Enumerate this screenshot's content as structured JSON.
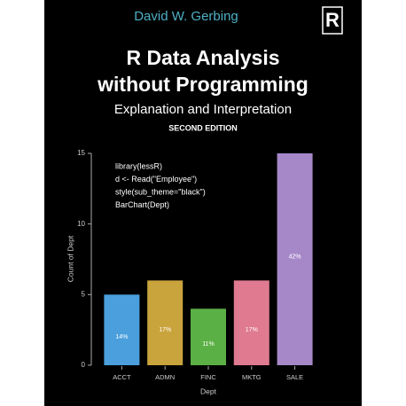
{
  "author": "David W. Gerbing",
  "publisher_logo": "R",
  "title_lines": [
    "R Data Analysis",
    "without Programming"
  ],
  "subtitle": "Explanation and Interpretation",
  "edition": "SECOND EDITION",
  "chart_data": {
    "type": "bar",
    "code_lines": [
      "library(lessR)",
      "d <- Read(\"Employee\")",
      "style(sub_theme=\"black\")",
      "BarChart(Dept)"
    ],
    "x_label": "Dept",
    "y_label": "Count of Dept",
    "categories": [
      "ACCT",
      "ADMN",
      "FINC",
      "MKTG",
      "SALE"
    ],
    "values": [
      5,
      6,
      4,
      6,
      15
    ],
    "percent_labels": [
      "14%",
      "17%",
      "11%",
      "17%",
      "42%"
    ],
    "colors": [
      "#4a9fdc",
      "#c9a33c",
      "#5bb045",
      "#df7a90",
      "#a688c9"
    ],
    "ylim": [
      0,
      15
    ],
    "yticks": [
      0,
      5,
      10,
      15
    ],
    "grid": false
  }
}
